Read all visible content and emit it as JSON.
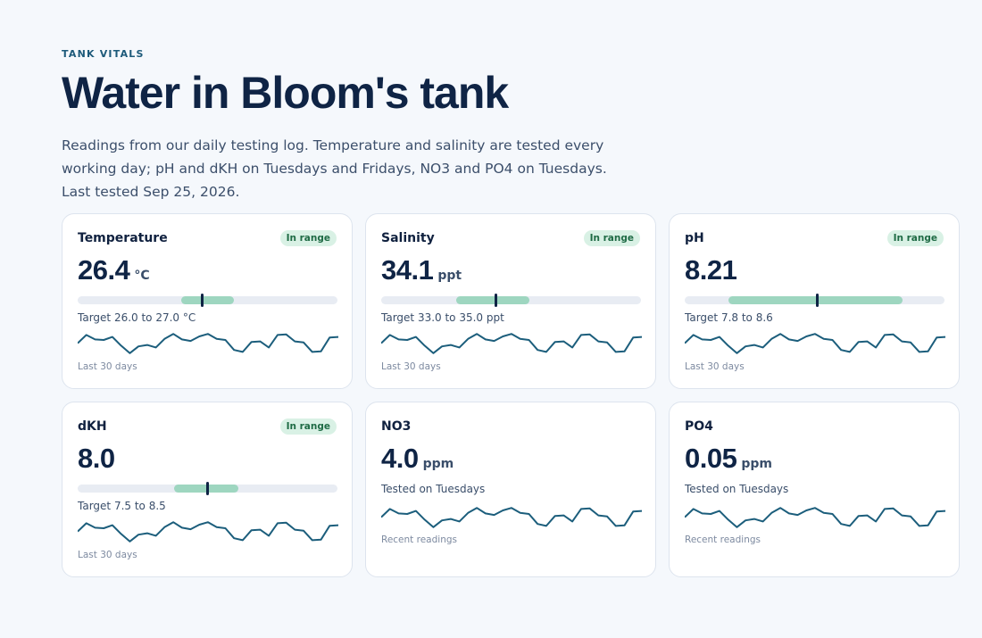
{
  "header": {
    "eyebrow": "TANK VITALS",
    "title": "Water in Bloom's tank",
    "intro": "Readings from our daily testing log. Temperature and salinity are tested every working day; pH and dKH on Tuesdays and Fridays, NO3 and PO4 on Tuesdays. Last tested Sep 25, 2026."
  },
  "cards": [
    {
      "name": "Temperature",
      "badge": "In range",
      "value": "26.4",
      "unit": "°C",
      "range": {
        "fill_start": 0.4,
        "fill_end": 0.6,
        "marker": 0.48
      },
      "target": "Target 26.0 to 27.0 °C",
      "footnote": "Last 30 days"
    },
    {
      "name": "Salinity",
      "badge": "In range",
      "value": "34.1",
      "unit": "ppt",
      "range": {
        "fill_start": 0.29,
        "fill_end": 0.57,
        "marker": 0.44
      },
      "target": "Target 33.0 to 35.0 ppt",
      "footnote": "Last 30 days"
    },
    {
      "name": "pH",
      "badge": "In range",
      "value": "8.21",
      "unit": "",
      "range": {
        "fill_start": 0.17,
        "fill_end": 0.84,
        "marker": 0.51
      },
      "target": "Target 7.8 to 8.6",
      "footnote": "Last 30 days"
    },
    {
      "name": "dKH",
      "badge": "In range",
      "value": "8.0",
      "unit": "",
      "range": {
        "fill_start": 0.37,
        "fill_end": 0.62,
        "marker": 0.5
      },
      "target": "Target 7.5 to 8.5",
      "footnote": "Last 30 days"
    },
    {
      "name": "NO3",
      "badge": "",
      "value": "4.0",
      "unit": "ppm",
      "range": null,
      "target": "Tested on Tuesdays",
      "footnote": "Recent readings"
    },
    {
      "name": "PO4",
      "badge": "",
      "value": "0.05",
      "unit": "ppm",
      "range": null,
      "target": "Tested on Tuesdays",
      "footnote": "Recent readings"
    }
  ],
  "sparkline": [
    0.45,
    0.12,
    0.3,
    0.32,
    0.2,
    0.55,
    0.85,
    0.58,
    0.52,
    0.62,
    0.28,
    0.08,
    0.3,
    0.36,
    0.18,
    0.08,
    0.28,
    0.32,
    0.72,
    0.8,
    0.4,
    0.38,
    0.62,
    0.12,
    0.1,
    0.38,
    0.42,
    0.8,
    0.78,
    0.22,
    0.2
  ]
}
